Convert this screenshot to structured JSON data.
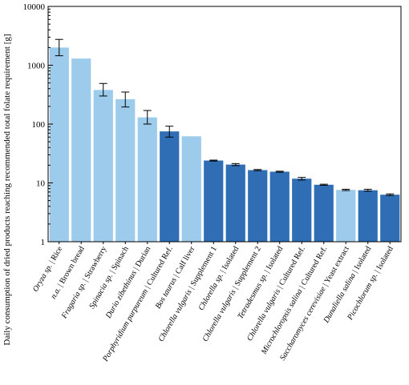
{
  "chart_data": {
    "type": "bar",
    "ylabel": "Daily consumption of  dried products reaching recommended total folate requirement [g]",
    "xlabel": "",
    "yscale": "log",
    "ylim": [
      1,
      10000
    ],
    "yticks": [
      1,
      10,
      100,
      1000,
      10000
    ],
    "ytick_labels": [
      "1",
      "10",
      "100",
      "1000",
      "10000"
    ],
    "colors": {
      "light": "#9ccbec",
      "dark": "#2f6db5",
      "error": "#000000"
    },
    "categories": [
      {
        "italic": "Oryza sp.",
        "rest": " | Rice"
      },
      {
        "italic": "n.a.",
        "rest": " | Brown bread"
      },
      {
        "italic": "Fragaria sp.",
        "rest": " | Strawberry"
      },
      {
        "italic": "Spinacia sp.",
        "rest": " | Spinach"
      },
      {
        "italic": "Durio zibethinus",
        "rest": " | Durian"
      },
      {
        "italic": "Porphyridium purpureum",
        "rest": " | Cultured Ref."
      },
      {
        "italic": "Bos taurus",
        "rest": " | Calf liver"
      },
      {
        "italic": "Chlorella vulgaris",
        "rest": " | Supplement 1"
      },
      {
        "italic": "Chlorella sp.",
        "rest": " | Isolated"
      },
      {
        "italic": "Chlorella vulgaris",
        "rest": " | Supplement 2"
      },
      {
        "italic": "Tetradesmus sp.",
        "rest": " | Isolated"
      },
      {
        "italic": "Chlorella vulgaris",
        "rest": " | Cultured Ref."
      },
      {
        "italic": "Microchloropsis salina",
        "rest": " | Cultured Ref."
      },
      {
        "italic": "Saccharomyces cerevisiae",
        "rest": " | Yeast extract"
      },
      {
        "italic": "Dunaliella salina",
        "rest": " | Isolated"
      },
      {
        "italic": "Picochlorum sp.",
        "rest": " | Isolated"
      }
    ],
    "values": [
      2000,
      1300,
      380,
      265,
      130,
      75,
      62,
      24,
      20.5,
      16.5,
      15.5,
      11.8,
      9.3,
      7.6,
      7.5,
      6.3
    ],
    "errors": [
      [
        1450,
        2750
      ],
      null,
      [
        300,
        490
      ],
      [
        195,
        350
      ],
      [
        100,
        170
      ],
      [
        60,
        92
      ],
      null,
      [
        23.5,
        24.4
      ],
      [
        19.7,
        21.3
      ],
      [
        16.1,
        16.9
      ],
      [
        15.2,
        15.8
      ],
      [
        11.2,
        12.4
      ],
      [
        9.1,
        9.5
      ],
      [
        7.4,
        7.8
      ],
      [
        7.2,
        7.8
      ],
      [
        6.1,
        6.5
      ]
    ],
    "bar_colors": [
      "light",
      "light",
      "light",
      "light",
      "light",
      "dark",
      "light",
      "dark",
      "dark",
      "dark",
      "dark",
      "dark",
      "dark",
      "light",
      "dark",
      "dark"
    ]
  }
}
